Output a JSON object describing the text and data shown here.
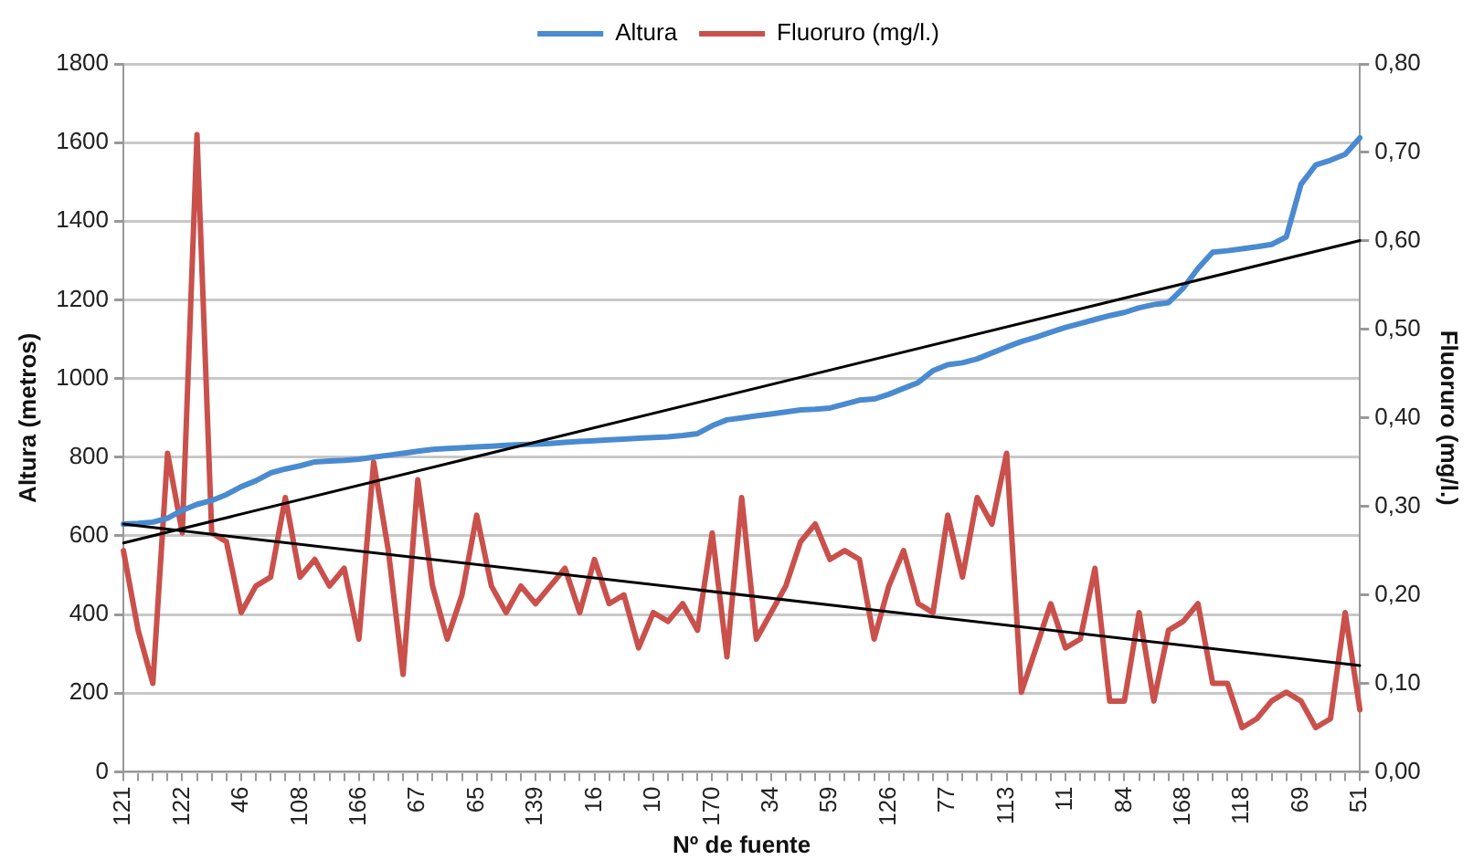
{
  "chart_data": {
    "type": "line",
    "xlabel": "Nº de fuente",
    "ylabel": "Altura (metros)",
    "y2label": "Fluoruro (mg/l.)",
    "categories": [
      "121",
      null,
      null,
      null,
      "122",
      null,
      null,
      null,
      "46",
      null,
      null,
      null,
      "108",
      null,
      null,
      null,
      "166",
      null,
      null,
      null,
      "67",
      null,
      null,
      null,
      "65",
      null,
      null,
      null,
      "139",
      null,
      null,
      null,
      "16",
      null,
      null,
      null,
      "10",
      null,
      null,
      null,
      "170",
      null,
      null,
      null,
      "34",
      null,
      null,
      null,
      "59",
      null,
      null,
      null,
      "126",
      null,
      null,
      null,
      "77",
      null,
      null,
      null,
      "113",
      null,
      null,
      null,
      "11",
      null,
      null,
      null,
      "84",
      null,
      null,
      null,
      "168",
      null,
      null,
      null,
      "118",
      null,
      null,
      null,
      "69",
      null,
      null,
      null,
      "51"
    ],
    "series": [
      {
        "name": "Altura",
        "color": "#4a8ad0",
        "values": [
          630,
          632,
          635,
          645,
          665,
          680,
          690,
          705,
          725,
          740,
          760,
          770,
          778,
          788,
          790,
          792,
          795,
          800,
          805,
          810,
          815,
          820,
          822,
          824,
          826,
          828,
          830,
          832,
          833,
          835,
          838,
          840,
          842,
          844,
          846,
          848,
          850,
          852,
          855,
          860,
          880,
          895,
          900,
          905,
          910,
          915,
          920,
          922,
          925,
          935,
          945,
          948,
          960,
          975,
          990,
          1020,
          1035,
          1040,
          1050,
          1065,
          1080,
          1094,
          1105,
          1118,
          1130,
          1140,
          1150,
          1160,
          1168,
          1180,
          1188,
          1193,
          1230,
          1280,
          1321,
          1325,
          1330,
          1335,
          1341,
          1360,
          1494,
          1543,
          1555,
          1570,
          1612
        ]
      },
      {
        "name": "Fluoruro (mg/l.)",
        "color": "#c9504b",
        "axis": "y2",
        "values": [
          0.25,
          0.16,
          0.1,
          0.36,
          0.27,
          0.72,
          0.27,
          0.26,
          0.18,
          0.21,
          0.22,
          0.31,
          0.22,
          0.24,
          0.21,
          0.23,
          0.15,
          0.35,
          0.25,
          0.11,
          0.33,
          0.21,
          0.15,
          0.2,
          0.29,
          0.21,
          0.18,
          0.21,
          0.19,
          0.21,
          0.23,
          0.18,
          0.24,
          0.19,
          0.2,
          0.14,
          0.18,
          0.17,
          0.19,
          0.16,
          0.27,
          0.13,
          0.31,
          0.15,
          0.18,
          0.21,
          0.26,
          0.28,
          0.24,
          0.25,
          0.24,
          0.15,
          0.21,
          0.25,
          0.19,
          0.18,
          0.29,
          0.22,
          0.31,
          0.28,
          0.36,
          0.09,
          0.14,
          0.19,
          0.14,
          0.15,
          0.23,
          0.08,
          0.08,
          0.18,
          0.08,
          0.16,
          0.17,
          0.19,
          0.1,
          0.1,
          0.05,
          0.06,
          0.08,
          0.09,
          0.08,
          0.05,
          0.06,
          0.18,
          0.07
        ]
      },
      {
        "color": "#000000",
        "x": [
          "121",
          "51"
        ],
        "values": [
          582,
          1351
        ]
      },
      {
        "color": "#000000",
        "axis": "y2",
        "x": [
          "121",
          "51"
        ],
        "values": [
          0.28,
          0.12
        ]
      }
    ],
    "ylim": [
      0,
      1800
    ],
    "yticks": [
      0,
      200,
      400,
      600,
      800,
      1000,
      1200,
      1400,
      1600,
      1800
    ],
    "y2lim": [
      0,
      0.8
    ],
    "y2ticks": [
      {
        "value": 0,
        "label": "0,00"
      },
      {
        "value": 0.1,
        "label": "0,10"
      },
      {
        "value": 0.2,
        "label": "0,20"
      },
      {
        "value": 0.3,
        "label": "0,30"
      },
      {
        "value": 0.4,
        "label": "0,40"
      },
      {
        "value": 0.5,
        "label": "0,50"
      },
      {
        "value": 0.6,
        "label": "0,60"
      },
      {
        "value": 0.7,
        "label": "0,70"
      },
      {
        "value": 0.8,
        "label": "0,80"
      }
    ],
    "grid": "y",
    "legend": "top",
    "marker": "none",
    "line_style": "solid"
  }
}
